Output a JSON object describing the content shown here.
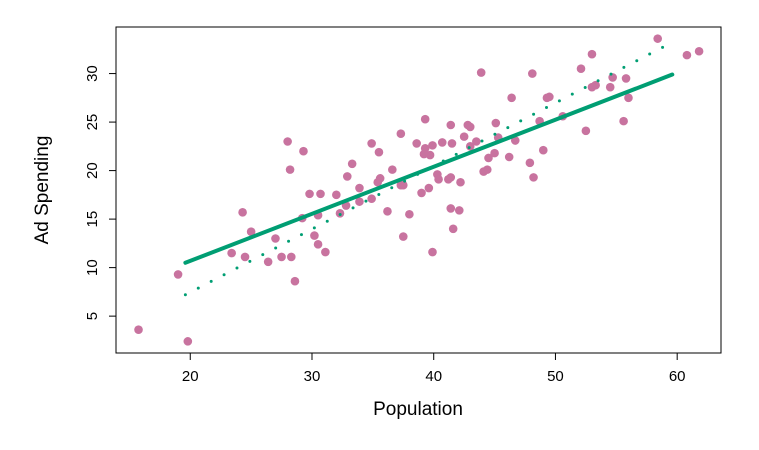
{
  "chart_data": {
    "type": "scatter",
    "title": "",
    "xlabel": "Population",
    "ylabel": "Ad Spending",
    "xlim": [
      13.9,
      63.6
    ],
    "ylim": [
      1.2,
      34.8
    ],
    "xticks": [
      20,
      30,
      40,
      50,
      60
    ],
    "yticks": [
      5,
      10,
      15,
      20,
      25,
      30
    ],
    "grid": false,
    "colors": {
      "points": "#C8739F",
      "fit": "#009E73",
      "true_line": "#009E73"
    },
    "points": [
      [
        15.75,
        3.6
      ],
      [
        19.8,
        2.4
      ],
      [
        19.0,
        9.3
      ],
      [
        24.3,
        15.7
      ],
      [
        25.0,
        13.7
      ],
      [
        23.4,
        11.5
      ],
      [
        24.5,
        11.1
      ],
      [
        26.4,
        10.6
      ],
      [
        27.0,
        13.0
      ],
      [
        27.5,
        11.1
      ],
      [
        28.3,
        11.1
      ],
      [
        28.6,
        8.6
      ],
      [
        28.0,
        23.0
      ],
      [
        28.2,
        20.1
      ],
      [
        29.3,
        22.0
      ],
      [
        29.2,
        15.1
      ],
      [
        29.8,
        17.6
      ],
      [
        30.7,
        17.6
      ],
      [
        30.5,
        15.4
      ],
      [
        30.2,
        13.3
      ],
      [
        30.5,
        12.4
      ],
      [
        31.1,
        11.6
      ],
      [
        32.0,
        17.5
      ],
      [
        32.3,
        15.6
      ],
      [
        32.8,
        16.4
      ],
      [
        32.9,
        19.4
      ],
      [
        33.3,
        20.7
      ],
      [
        33.9,
        18.2
      ],
      [
        33.9,
        16.8
      ],
      [
        34.9,
        22.8
      ],
      [
        34.9,
        17.1
      ],
      [
        35.5,
        21.9
      ],
      [
        35.4,
        18.8
      ],
      [
        35.6,
        19.2
      ],
      [
        36.2,
        15.8
      ],
      [
        36.6,
        20.1
      ],
      [
        37.3,
        23.8
      ],
      [
        37.3,
        18.5
      ],
      [
        37.5,
        18.5
      ],
      [
        37.5,
        13.2
      ],
      [
        38.0,
        15.5
      ],
      [
        38.6,
        22.8
      ],
      [
        39.0,
        17.7
      ],
      [
        39.3,
        25.3
      ],
      [
        39.3,
        22.3
      ],
      [
        39.2,
        21.7
      ],
      [
        39.7,
        21.6
      ],
      [
        39.9,
        22.6
      ],
      [
        39.6,
        18.2
      ],
      [
        39.9,
        11.6
      ],
      [
        40.3,
        19.6
      ],
      [
        40.4,
        19.1
      ],
      [
        40.7,
        22.9
      ],
      [
        41.4,
        24.7
      ],
      [
        41.5,
        22.8
      ],
      [
        42.5,
        23.5
      ],
      [
        42.8,
        24.7
      ],
      [
        43.0,
        24.5
      ],
      [
        43.0,
        22.5
      ],
      [
        43.5,
        23.0
      ],
      [
        43.9,
        30.1
      ],
      [
        41.2,
        19.1
      ],
      [
        41.4,
        19.3
      ],
      [
        42.2,
        18.8
      ],
      [
        41.4,
        16.1
      ],
      [
        42.1,
        15.9
      ],
      [
        41.6,
        14.0
      ],
      [
        44.1,
        19.9
      ],
      [
        44.4,
        20.1
      ],
      [
        44.5,
        21.3
      ],
      [
        45.0,
        21.8
      ],
      [
        45.1,
        24.9
      ],
      [
        45.3,
        23.4
      ],
      [
        46.2,
        21.4
      ],
      [
        46.4,
        27.5
      ],
      [
        46.7,
        23.1
      ],
      [
        47.9,
        20.8
      ],
      [
        48.1,
        30.0
      ],
      [
        48.2,
        19.3
      ],
      [
        48.7,
        25.1
      ],
      [
        49.0,
        22.1
      ],
      [
        49.3,
        27.5
      ],
      [
        49.5,
        27.6
      ],
      [
        50.6,
        25.6
      ],
      [
        52.1,
        30.5
      ],
      [
        52.5,
        24.1
      ],
      [
        53.0,
        32.0
      ],
      [
        53.0,
        28.6
      ],
      [
        53.3,
        28.8
      ],
      [
        54.5,
        28.6
      ],
      [
        54.7,
        29.6
      ],
      [
        55.6,
        25.1
      ],
      [
        55.8,
        29.5
      ],
      [
        56.0,
        27.5
      ],
      [
        58.4,
        33.6
      ],
      [
        60.8,
        31.9
      ],
      [
        61.8,
        32.3
      ]
    ],
    "fit_line": {
      "x": [
        19.6,
        59.6
      ],
      "y": [
        10.5,
        29.9
      ],
      "style": "solid"
    },
    "true_line": {
      "x": [
        19.6,
        58.8
      ],
      "y": [
        7.2,
        32.7
      ],
      "style": "dotted"
    }
  }
}
